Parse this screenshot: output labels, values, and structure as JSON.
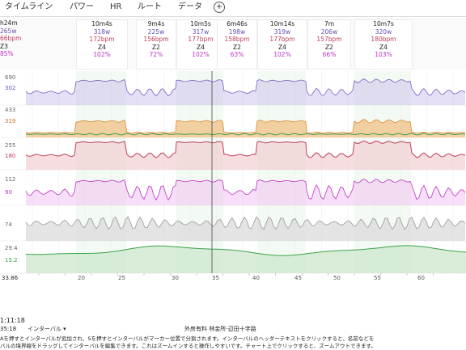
{
  "tabs": [
    {
      "label": "タイムライン",
      "active": true
    },
    {
      "label": "パワー"
    },
    {
      "label": "HR"
    },
    {
      "label": "ルート"
    },
    {
      "label": "データ"
    }
  ],
  "tab_add_icon": "plus-circle-icon",
  "left_header": {
    "lines": [
      "h24m",
      "265w",
      "66bpm",
      "Z3",
      "85%"
    ]
  },
  "interval_headers": [
    {
      "duration": "10m4s",
      "watts": "318w",
      "bpm": "172bpm",
      "zone": "Z4",
      "pct": "102%"
    },
    {
      "duration": "9m4s",
      "watts": "225w",
      "bpm": "156bpm",
      "zone": "Z2",
      "pct": "72%"
    },
    {
      "duration": "10m5s",
      "watts": "317w",
      "bpm": "177bpm",
      "zone": "Z4",
      "pct": "102%"
    },
    {
      "duration": "6m46s",
      "watts": "198w",
      "bpm": "158bpm",
      "zone": "Z2",
      "pct": "63%"
    },
    {
      "duration": "10m14s",
      "watts": "319w",
      "bpm": "177bpm",
      "zone": "Z4",
      "pct": "102%"
    },
    {
      "duration": "7m",
      "watts": "206w",
      "bpm": "157bpm",
      "zone": "Z2",
      "pct": "66%"
    },
    {
      "duration": "10m7s",
      "watts": "320w",
      "bpm": "180bpm",
      "zone": "Z4",
      "pct": "103%"
    }
  ],
  "y_labels": [
    "690",
    "302",
    "433",
    "319",
    "255",
    "180",
    "112",
    "90",
    "74",
    "29.4",
    "15.2"
  ],
  "interval_numbers": [
    "20",
    "25",
    "30",
    "35",
    "40",
    "45",
    "50",
    "55",
    "60"
  ],
  "time_ticks": [
    "0:40",
    "0:45",
    "0:50",
    "0:55",
    "1:00",
    "1:05",
    "1:10",
    "1:15",
    "1:20",
    "1:25",
    "1:30",
    "1:35",
    "1:40",
    "1:45",
    "1:50",
    "1:55"
  ],
  "left_bottom": {
    "value": "33.86",
    "time": "1:11:18",
    "time2": "35:18"
  },
  "location": "外房有料 林金所-辺田十字路",
  "interval_dropdown": "インターバル",
  "help_line1": "Aを押すとインターバルが追加され、Sを押すとインターバルがマーカー位置で分割されます。インターバルのヘッダーテキストをクリックすると、名前などを",
  "help_line2": "バルの境界線をドラッグしてインターバルを編集できます。これはズームインすると操作しやすいです。チャート上でクリックすると、ズームアウトできます。",
  "colors": {
    "accent": "#2b86c8",
    "power": "#7b5fc4",
    "hr": "#c0405a",
    "cadence": "#c030c8",
    "speed": "#999999",
    "elevation": "#3aa34a",
    "highlight": "#d9efd8"
  }
}
